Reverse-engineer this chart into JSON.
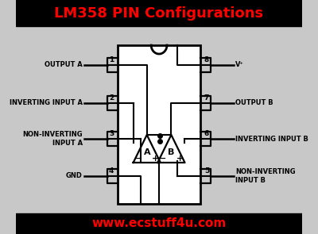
{
  "title": "LM358 PIN Configurations",
  "title_color": "#FF0000",
  "title_bg": "#000000",
  "body_bg": "#C8C8C8",
  "footer_text": "www.ecstuff4u.com",
  "footer_color": "#FF0000",
  "footer_bg": "#000000",
  "pin_labels_left": [
    "OUTPUT A",
    "INVERTING INPUT A",
    "NON-INVERTING\nINPUT A",
    "GND"
  ],
  "pin_labels_right": [
    "V⁺",
    "OUTPUT B",
    "INVERTING INPUT B",
    "NON-INVERTING\nINPUT B"
  ],
  "pin_numbers_left": [
    "1",
    "2",
    "3",
    "4"
  ],
  "pin_numbers_right": [
    "8",
    "7",
    "6",
    "5"
  ],
  "ic_fill": "#FFFFFF",
  "line_color": "#000000",
  "title_fontsize": 13,
  "footer_fontsize": 11,
  "label_fontsize": 6.0,
  "pin_num_fontsize": 6.5
}
